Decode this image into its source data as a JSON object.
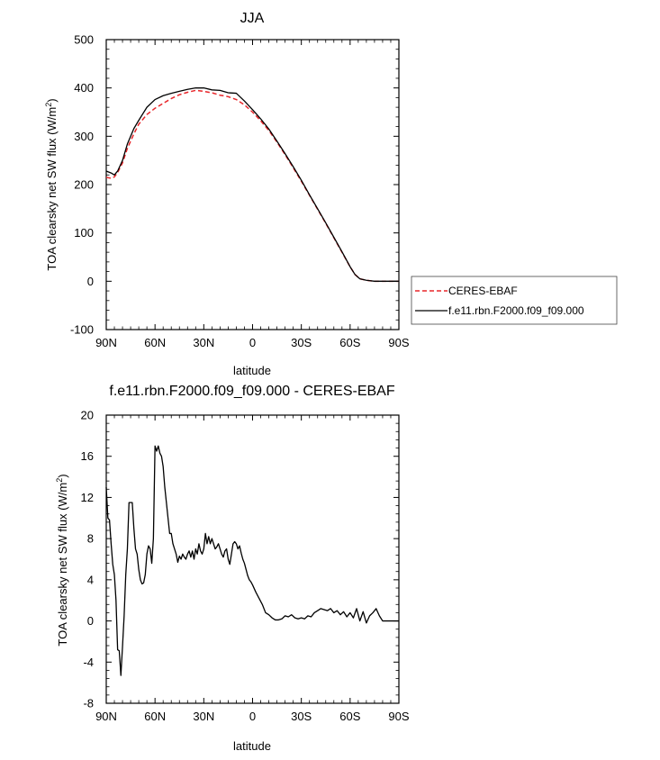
{
  "chart_data": [
    {
      "type": "line",
      "title": "JJA",
      "xlabel": "latitude",
      "ylabel_main": "TOA clearsky net SW flux (W/m",
      "ylabel_sup": "2",
      "ylabel_tail": ")",
      "xlim": [
        90,
        -90
      ],
      "ylim": [
        -100,
        500
      ],
      "x_ticks": [
        90,
        60,
        30,
        0,
        -30,
        -60,
        -90
      ],
      "x_tick_labels": [
        "90N",
        "60N",
        "30N",
        "0",
        "30S",
        "60S",
        "90S"
      ],
      "y_ticks": [
        -100,
        0,
        100,
        200,
        300,
        400,
        500
      ],
      "y_tick_labels": [
        "-100",
        "0",
        "100",
        "200",
        "300",
        "400",
        "500"
      ],
      "legend": {
        "placement": "outside-right",
        "entries": [
          "CERES-EBAF",
          "f.e11.rbn.F2000.f09_f09.000"
        ]
      },
      "series": [
        {
          "name": "CERES-EBAF",
          "color": "#e8262a",
          "dash": "dashed",
          "x": [
            90,
            87,
            85,
            83,
            80,
            77,
            73,
            70,
            65,
            60,
            55,
            50,
            45,
            40,
            35,
            30,
            25,
            20,
            15,
            10,
            5,
            0,
            -5,
            -10,
            -15,
            -20,
            -25,
            -30,
            -35,
            -40,
            -45,
            -50,
            -55,
            -60,
            -63,
            -66,
            -70,
            -75,
            -80,
            -85,
            -90
          ],
          "y": [
            215,
            213,
            216,
            225,
            245,
            275,
            305,
            325,
            345,
            358,
            368,
            378,
            386,
            391,
            395,
            393,
            390,
            385,
            382,
            376,
            365,
            350,
            332,
            312,
            288,
            262,
            235,
            207,
            178,
            149,
            120,
            90,
            60,
            30,
            14,
            5,
            2,
            0,
            0,
            0,
            0
          ]
        },
        {
          "name": "f.e11.rbn.F2000.f09_f09.000",
          "color": "#000000",
          "dash": "solid",
          "x": [
            90,
            87,
            85,
            83,
            80,
            77,
            73,
            70,
            65,
            60,
            55,
            50,
            45,
            40,
            35,
            30,
            25,
            20,
            15,
            10,
            5,
            0,
            -5,
            -10,
            -15,
            -20,
            -25,
            -30,
            -35,
            -40,
            -45,
            -50,
            -55,
            -60,
            -63,
            -66,
            -70,
            -75,
            -80,
            -85,
            -90
          ],
          "y": [
            228,
            224,
            220,
            228,
            250,
            284,
            316,
            333,
            360,
            376,
            384,
            389,
            393,
            397,
            400,
            400,
            396,
            395,
            390,
            389,
            373,
            355,
            336,
            315,
            290,
            264,
            237,
            209,
            179,
            150,
            121,
            91,
            61,
            30,
            14,
            5,
            2,
            0,
            0,
            0,
            0
          ]
        }
      ]
    },
    {
      "type": "line",
      "title": "f.e11.rbn.F2000.f09_f09.000 - CERES-EBAF",
      "xlabel": "latitude",
      "ylabel_main": "TOA clearsky net SW flux (W/m",
      "ylabel_sup": "2",
      "ylabel_tail": ")",
      "xlim": [
        90,
        -90
      ],
      "ylim": [
        -8,
        20
      ],
      "x_ticks": [
        90,
        60,
        30,
        0,
        -30,
        -60,
        -90
      ],
      "x_tick_labels": [
        "90N",
        "60N",
        "30N",
        "0",
        "30S",
        "60S",
        "90S"
      ],
      "y_ticks": [
        -8,
        -4,
        0,
        4,
        8,
        12,
        16,
        20
      ],
      "y_tick_labels": [
        "-8",
        "-4",
        "0",
        "4",
        "8",
        "12",
        "16",
        "20"
      ],
      "series": [
        {
          "color": "#000000",
          "dash": "solid",
          "x": [
            90,
            89,
            88,
            87,
            86,
            85,
            84,
            83,
            82,
            81,
            80,
            79,
            78,
            77,
            76,
            75,
            74,
            73,
            72,
            71,
            70,
            69,
            68,
            67,
            66,
            65,
            64,
            63,
            62,
            61,
            60,
            59,
            58,
            57,
            56,
            55,
            54,
            53,
            52,
            51,
            50,
            49,
            48,
            47,
            46,
            45,
            44,
            43,
            42,
            41,
            40,
            39,
            38,
            37,
            36,
            35,
            34,
            33,
            32,
            31,
            30,
            29,
            28,
            27,
            26,
            25,
            24,
            23,
            22,
            21,
            20,
            19,
            18,
            17,
            16,
            15,
            14,
            13,
            12,
            11,
            10,
            9,
            8,
            7,
            6,
            5,
            4,
            3,
            2,
            1,
            0,
            -2,
            -4,
            -6,
            -8,
            -10,
            -12,
            -14,
            -16,
            -18,
            -20,
            -22,
            -24,
            -26,
            -28,
            -30,
            -32,
            -34,
            -36,
            -38,
            -40,
            -42,
            -44,
            -46,
            -48,
            -50,
            -52,
            -54,
            -56,
            -58,
            -60,
            -62,
            -64,
            -66,
            -68,
            -70,
            -72,
            -74,
            -76,
            -78,
            -80,
            -82,
            -84,
            -86,
            -88,
            -90
          ],
          "y": [
            13.0,
            10.0,
            9.8,
            7.5,
            5.5,
            4.5,
            2.0,
            -2.8,
            -2.9,
            -5.3,
            -2.5,
            0.5,
            4.5,
            7.0,
            11.5,
            11.5,
            11.5,
            9.0,
            7.0,
            6.5,
            5.0,
            4.0,
            3.6,
            3.7,
            4.5,
            6.5,
            7.3,
            7.0,
            5.6,
            8.0,
            17.0,
            16.5,
            17.0,
            16.3,
            16.0,
            15.0,
            13.0,
            11.5,
            10.0,
            8.5,
            8.5,
            7.5,
            7.0,
            6.5,
            5.7,
            6.3,
            6.0,
            6.5,
            6.2,
            6.0,
            6.5,
            6.8,
            6.2,
            6.8,
            6.0,
            7.0,
            6.5,
            7.5,
            6.8,
            6.5,
            7.0,
            8.5,
            7.5,
            8.2,
            7.5,
            8.0,
            7.5,
            7.0,
            7.2,
            7.5,
            7.0,
            6.5,
            6.2,
            6.8,
            7.0,
            6.0,
            5.5,
            6.5,
            7.5,
            7.7,
            7.5,
            7.0,
            7.3,
            6.6,
            6.0,
            5.6,
            5.0,
            4.4,
            4.0,
            3.8,
            3.5,
            2.8,
            2.2,
            1.6,
            0.8,
            0.6,
            0.3,
            0.1,
            0.1,
            0.2,
            0.5,
            0.4,
            0.6,
            0.3,
            0.2,
            0.3,
            0.2,
            0.5,
            0.4,
            0.8,
            1.0,
            1.2,
            1.1,
            1.0,
            1.2,
            0.8,
            1.0,
            0.6,
            0.9,
            0.4,
            0.8,
            0.3,
            1.2,
            0.0,
            0.9,
            -0.2,
            0.5,
            0.8,
            1.2,
            0.5,
            0.0,
            0.0,
            0.0,
            0.0,
            0.0,
            0.0
          ]
        }
      ]
    }
  ]
}
